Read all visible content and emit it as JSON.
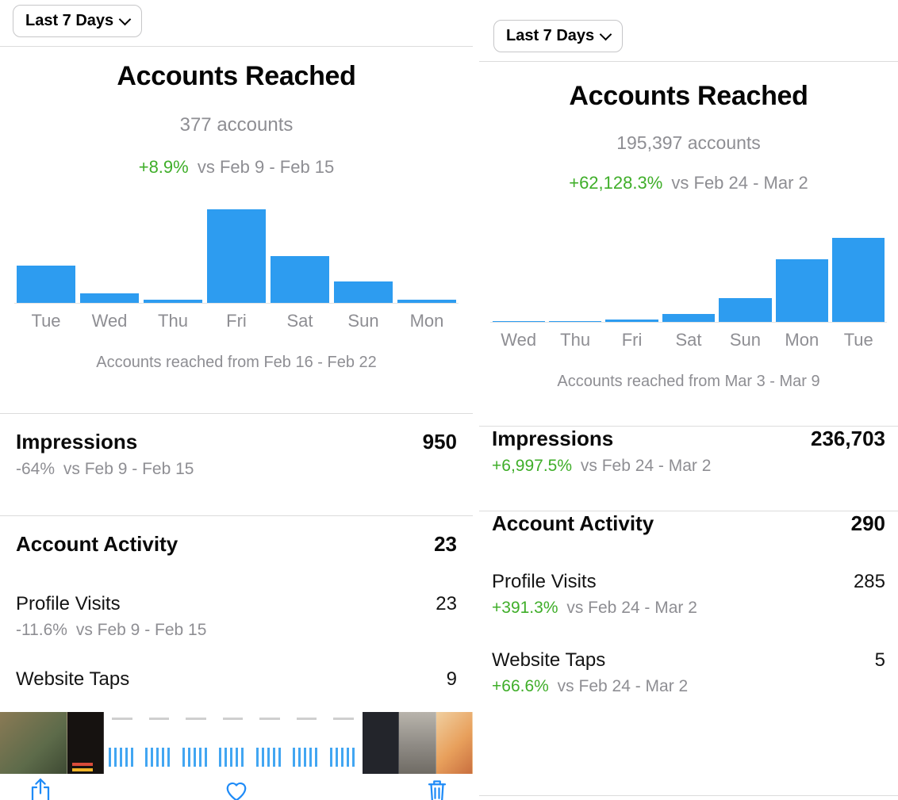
{
  "colors": {
    "bar_blue": "#2D9CF0",
    "positive_green": "#3FAE29",
    "muted_gray": "#8E8E93",
    "icon_blue": "#1F8BF7"
  },
  "panels": [
    {
      "period_button": "Last 7 Days",
      "title": "Accounts Reached",
      "accounts": "377 accounts",
      "change": {
        "value": "+8.9%",
        "rest": "vs Feb 9 - Feb 15",
        "positive": true
      },
      "caption": "Accounts reached from Feb 16 - Feb 22",
      "impressions": {
        "label": "Impressions",
        "value": "950",
        "change": "-64%",
        "rest": "vs Feb 9 - Feb 15",
        "positive": false
      },
      "account_activity": {
        "label": "Account Activity",
        "value": "23"
      },
      "profile_visits": {
        "label": "Profile Visits",
        "value": "23",
        "change": "-11.6%",
        "rest": "vs Feb 9 - Feb 15",
        "positive": false
      },
      "website_taps": {
        "label": "Website Taps",
        "value": "9"
      }
    },
    {
      "period_button": "Last 7 Days",
      "title": "Accounts Reached",
      "accounts": "195,397 accounts",
      "change": {
        "value": "+62,128.3%",
        "rest": "vs Feb 24 - Mar 2",
        "positive": true
      },
      "caption": "Accounts reached from Mar 3 - Mar 9",
      "impressions": {
        "label": "Impressions",
        "value": "236,703",
        "change": "+6,997.5%",
        "rest": "vs Feb 24 - Mar 2",
        "positive": true
      },
      "account_activity": {
        "label": "Account Activity",
        "value": "290"
      },
      "profile_visits": {
        "label": "Profile Visits",
        "value": "285",
        "change": "+391.3%",
        "rest": "vs Feb 24 - Mar 2",
        "positive": true
      },
      "website_taps": {
        "label": "Website Taps",
        "value": "5",
        "change": "+66.6%",
        "rest": "vs Feb 24 - Mar 2",
        "positive": true
      }
    }
  ],
  "chart_data": [
    {
      "type": "bar",
      "title": "Accounts Reached",
      "categories": [
        "Tue",
        "Wed",
        "Thu",
        "Fri",
        "Sat",
        "Sun",
        "Mon"
      ],
      "values_percent_of_max": [
        40,
        10,
        3,
        100,
        50,
        23,
        3
      ],
      "total_label": "377 accounts",
      "caption": "Accounts reached from Feb 16 - Feb 22",
      "xlabel": "",
      "ylabel": "",
      "grid": false,
      "legend": "none"
    },
    {
      "type": "bar",
      "title": "Accounts Reached",
      "categories": [
        "Wed",
        "Thu",
        "Fri",
        "Sat",
        "Sun",
        "Mon",
        "Tue"
      ],
      "values_percent_of_max": [
        1,
        1,
        3,
        9,
        28,
        75,
        100
      ],
      "total_label": "195,397 accounts",
      "caption": "Accounts reached from Mar 3 - Mar 9",
      "xlabel": "",
      "ylabel": "",
      "grid": false,
      "legend": "none"
    }
  ],
  "filmstrip": {
    "thumbs": [
      "photo-outdoor",
      "poster-dark",
      "chart-mini",
      "chart-mini",
      "chart-mini",
      "chart-mini",
      "chart-mini",
      "chart-mini",
      "chart-mini",
      "video-dark",
      "photo-shelf",
      "photo-cartoon"
    ]
  },
  "toolbar": {
    "icons": [
      "share",
      "heart",
      "trash"
    ]
  }
}
